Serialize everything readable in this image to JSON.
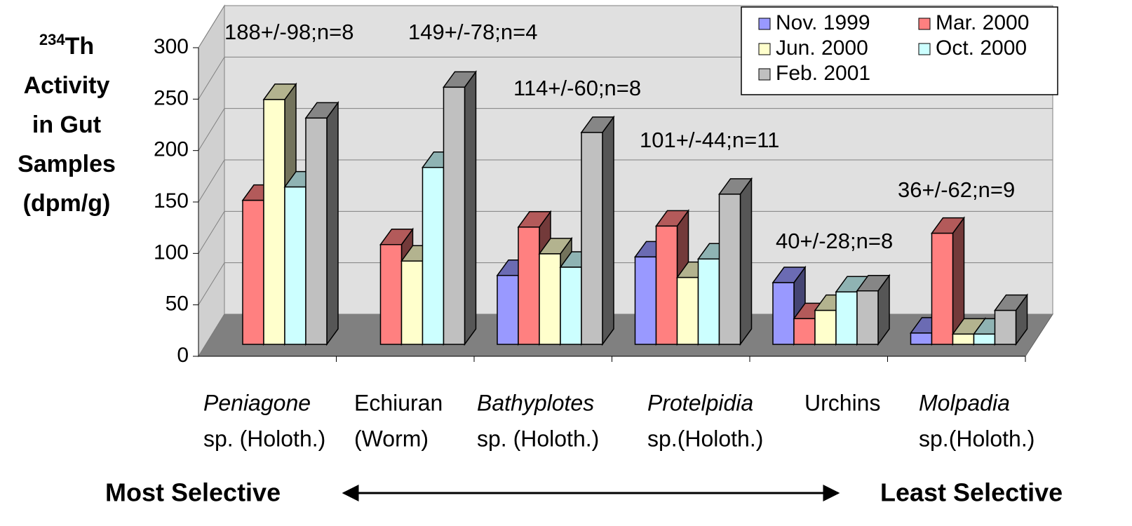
{
  "chart_data": {
    "type": "bar3d",
    "y_label_sup": "234",
    "y_label": [
      "Th",
      "Activity",
      "in Gut",
      "Samples",
      "(dpm/g)"
    ],
    "categories": [
      [
        "Peniagone",
        "sp. (Holoth.)"
      ],
      [
        "Echiuran",
        "(Worm)"
      ],
      [
        "Bathyplotes",
        "sp. (Holoth.)"
      ],
      [
        "Protelpidia",
        "sp.(Holoth.)"
      ],
      [
        "Urchins"
      ],
      [
        "Molpadia",
        "sp.(Holoth.)"
      ]
    ],
    "italic_first_line": [
      true,
      false,
      true,
      true,
      false,
      true
    ],
    "series": [
      {
        "name": "Nov. 1999",
        "color": "#9999ff",
        "values": [
          null,
          null,
          67,
          85,
          60,
          11
        ]
      },
      {
        "name": "Mar. 2000",
        "color": "#ff8080",
        "values": [
          140,
          97,
          114,
          115,
          25,
          108
        ]
      },
      {
        "name": "Jun. 2000",
        "color": "#ffffcc",
        "values": [
          238,
          81,
          88,
          65,
          33,
          10
        ]
      },
      {
        "name": "Oct. 2000",
        "color": "#ccffff",
        "values": [
          153,
          172,
          75,
          83,
          51,
          10
        ]
      },
      {
        "name": "Feb. 2001",
        "color": "#c0c0c0",
        "values": [
          220,
          250,
          206,
          146,
          52,
          33
        ]
      }
    ],
    "annotations": [
      "188+/-98;n=8",
      "149+/-78;n=4",
      "114+/-60;n=8",
      "101+/-44;n=11",
      "40+/-28;n=8",
      "36+/-62;n=9"
    ],
    "ylim": [
      0,
      300
    ],
    "yticks": [
      0,
      50,
      100,
      150,
      200,
      250,
      300
    ],
    "grid": true,
    "legend_position": "top-right",
    "footer_left": "Most Selective",
    "footer_right": "Least Selective"
  }
}
